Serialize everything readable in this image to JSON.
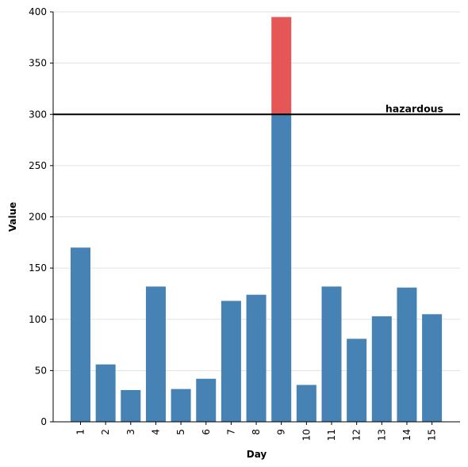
{
  "chart_data": {
    "type": "bar",
    "title": "",
    "xlabel": "Day",
    "ylabel": "Value",
    "categories": [
      "1",
      "2",
      "3",
      "4",
      "5",
      "6",
      "7",
      "8",
      "9",
      "10",
      "11",
      "12",
      "13",
      "14",
      "15"
    ],
    "values": [
      170,
      56,
      31,
      132,
      32,
      42,
      118,
      124,
      395,
      36,
      132,
      81,
      103,
      131,
      105
    ],
    "ylim": [
      0,
      400
    ],
    "yticks": [
      "0",
      "50",
      "100",
      "150",
      "200",
      "250",
      "300",
      "350",
      "400"
    ],
    "threshold": {
      "value": 300,
      "label": "hazardous",
      "color": "#000000"
    },
    "colors": {
      "bar": "#4682b4",
      "above_threshold": "#e45756"
    },
    "grid": "horizontal"
  }
}
